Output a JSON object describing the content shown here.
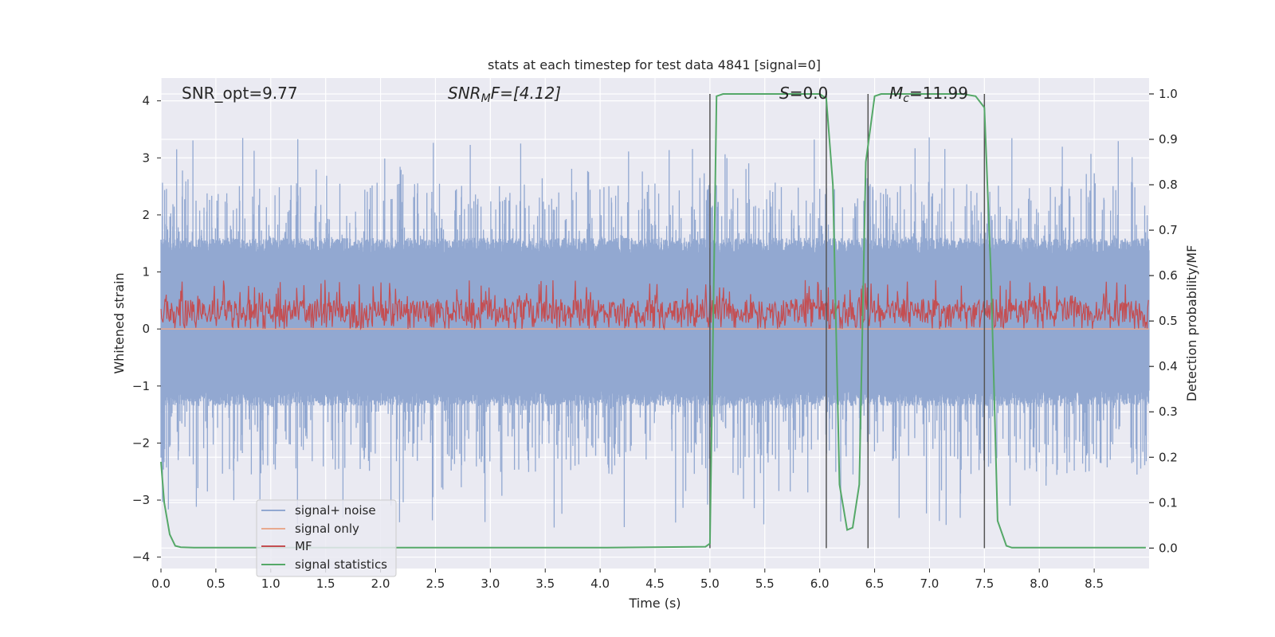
{
  "chart_data": {
    "type": "line",
    "title": "stats at each timestep for test data 4841 [signal=0]",
    "xlabel": "Time (s)",
    "ylabel": "Whitened strain",
    "ylabel_right": "Detection probability/MF",
    "xlim": [
      0.0,
      9.0
    ],
    "ylim": [
      -4.2,
      4.4
    ],
    "ylim_right": [
      -0.045,
      1.035
    ],
    "x_ticks": [
      "0.0",
      "0.5",
      "1.0",
      "1.5",
      "2.0",
      "2.5",
      "3.0",
      "3.5",
      "4.0",
      "4.5",
      "5.0",
      "5.5",
      "6.0",
      "6.5",
      "7.0",
      "7.5",
      "8.0",
      "8.5"
    ],
    "y_ticks": [
      "−4",
      "−3",
      "−2",
      "−1",
      "0",
      "1",
      "2",
      "3",
      "4"
    ],
    "y_ticks_right": [
      "0.0",
      "0.1",
      "0.2",
      "0.3",
      "0.4",
      "0.5",
      "0.6",
      "0.7",
      "0.8",
      "0.9",
      "1.0"
    ],
    "grid": true,
    "legend_position": "lower-left",
    "annotations": {
      "snr_opt": "SNR_opt=9.77",
      "snr_mf_main": "SNR",
      "snr_mf_sub": "M",
      "snr_mf_rest": "F=[4.12]",
      "s_main": "S",
      "s_rest": "=0.0",
      "mc_main": "M",
      "mc_sub": "c",
      "mc_rest": "=11.99"
    },
    "series": [
      {
        "name": "signal+ noise",
        "color": "#92a8d1",
        "description_stats": {
          "band_min": -1.35,
          "band_max": 1.6,
          "peak_max": 3.38,
          "peak_min": -3.55
        }
      },
      {
        "name": "signal only",
        "color": "#e8a98f",
        "value": 0.0
      },
      {
        "name": "MF",
        "color": "#c44e52",
        "band_min": 0.0,
        "band_max": 0.55,
        "peak_max": 1.0
      },
      {
        "name": "signal statistics",
        "color": "#55a868",
        "axis": "right",
        "x": [
          0.0,
          0.03,
          0.08,
          0.13,
          0.18,
          0.3,
          1.0,
          2.0,
          3.0,
          4.0,
          4.96,
          5.0,
          5.06,
          5.12,
          5.3,
          5.6,
          5.9,
          6.0,
          6.06,
          6.12,
          6.18,
          6.25,
          6.3,
          6.36,
          6.42,
          6.5,
          6.56,
          6.8,
          7.0,
          7.3,
          7.42,
          7.5,
          7.56,
          7.62,
          7.7,
          7.75,
          8.0,
          8.5,
          8.97
        ],
        "values": [
          0.19,
          0.1,
          0.03,
          0.005,
          0.002,
          0.001,
          0.001,
          0.001,
          0.001,
          0.001,
          0.003,
          0.01,
          0.995,
          1.0,
          1.0,
          1.0,
          1.0,
          1.0,
          0.99,
          0.8,
          0.14,
          0.04,
          0.045,
          0.14,
          0.85,
          0.995,
          1.0,
          1.0,
          1.0,
          1.0,
          0.995,
          0.97,
          0.6,
          0.06,
          0.005,
          0.001,
          0.001,
          0.001,
          0.001
        ]
      }
    ],
    "vertical_lines_x": [
      5.0,
      6.06,
      6.44,
      7.5
    ]
  }
}
